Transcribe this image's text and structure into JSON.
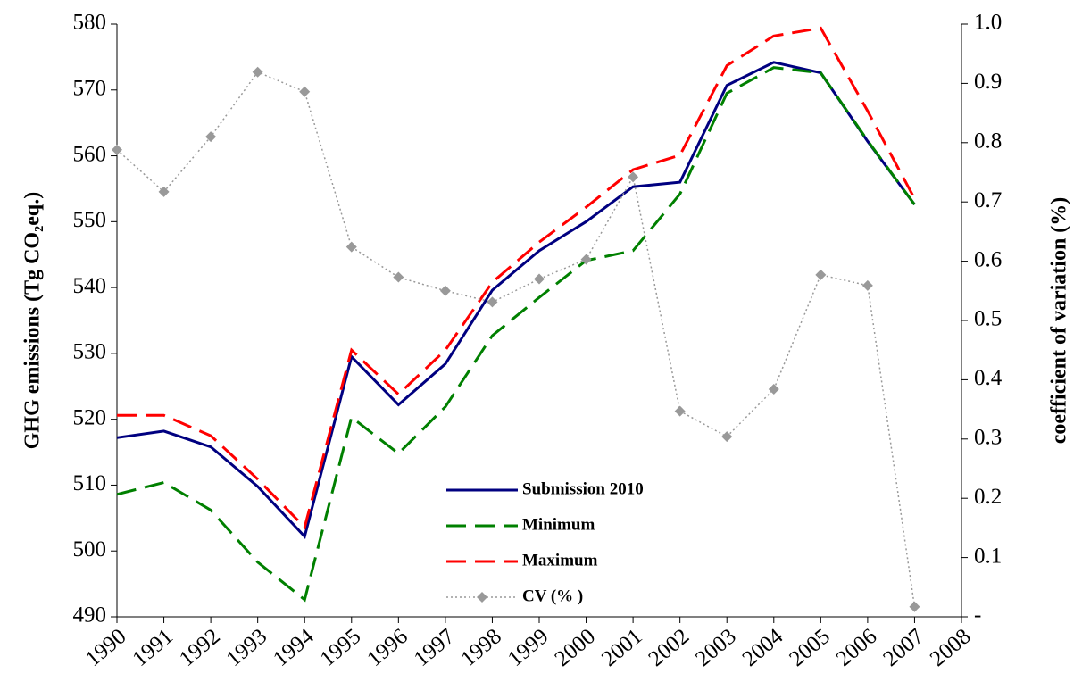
{
  "chart_data": {
    "type": "line",
    "y_label": "GHG emissions (Tg CO₂eq.)",
    "y2_label": "coefficient of variation (%)",
    "x": [
      1990,
      1991,
      1992,
      1993,
      1994,
      1995,
      1996,
      1997,
      1998,
      1999,
      2000,
      2001,
      2002,
      2003,
      2004,
      2005,
      2006,
      2007
    ],
    "xlim": [
      1990,
      2008
    ],
    "xticks": [
      1990,
      1991,
      1992,
      1993,
      1994,
      1995,
      1996,
      1997,
      1998,
      1999,
      2000,
      2001,
      2002,
      2003,
      2004,
      2005,
      2006,
      2007,
      2008
    ],
    "ylim": [
      490,
      580
    ],
    "yticks": [
      490,
      500,
      510,
      520,
      530,
      540,
      550,
      560,
      570,
      580
    ],
    "y2lim": [
      0,
      1
    ],
    "y2ticks": [
      {
        "value": 0,
        "label": "-"
      },
      0.1,
      0.2,
      0.3,
      0.4,
      0.5,
      0.6,
      0.7,
      0.8,
      0.9,
      {
        "value": 1,
        "label": "1.0"
      }
    ],
    "grid": false,
    "legend": "bottom-center",
    "series": [
      {
        "name": "Submission 2010",
        "color": "#000080",
        "style": "solid",
        "values": [
          517.2,
          518.2,
          515.8,
          509.8,
          502.2,
          529.5,
          522.2,
          528.4,
          539.6,
          545.6,
          550.0,
          555.3,
          556.0,
          570.7,
          574.2,
          572.6,
          562.2,
          552.6
        ]
      },
      {
        "name": "Minimum",
        "color": "#008000",
        "style": "dashed",
        "values": [
          508.6,
          510.4,
          506.2,
          498.3,
          492.6,
          520.3,
          514.8,
          521.9,
          532.7,
          538.5,
          544.1,
          545.6,
          554.2,
          569.5,
          573.4,
          572.6,
          562.3,
          552.6
        ]
      },
      {
        "name": "Maximum",
        "color": "#ff0000",
        "style": "dashed",
        "values": [
          520.6,
          520.6,
          517.5,
          510.9,
          503.6,
          530.5,
          523.8,
          530.5,
          540.8,
          546.9,
          552.2,
          557.9,
          560.1,
          573.7,
          578.2,
          579.4,
          566.8,
          553.5
        ]
      },
      {
        "name": "CV (% )",
        "color": "#999999",
        "style": "dotted",
        "axis": "y2",
        "marker": "diamond",
        "values": [
          0.788,
          0.717,
          0.81,
          0.919,
          0.886,
          0.624,
          0.573,
          0.55,
          0.531,
          0.57,
          0.603,
          0.742,
          0.347,
          0.304,
          0.384,
          0.577,
          0.559,
          0.017
        ]
      }
    ]
  }
}
